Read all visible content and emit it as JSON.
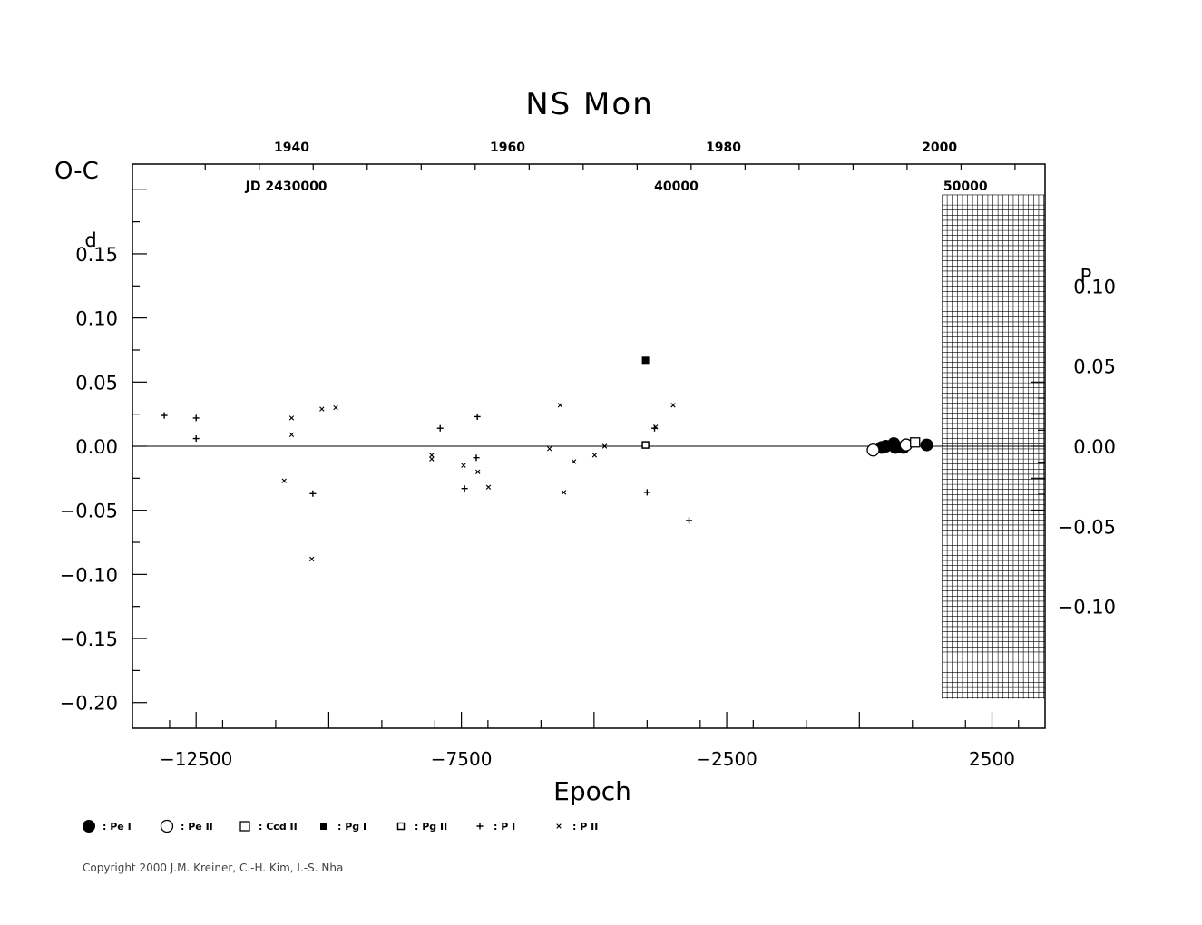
{
  "chart_data": {
    "type": "scatter",
    "title": "NS  Mon",
    "ylabel": "O-C",
    "xlabel": "Epoch",
    "xlim": [
      -13700,
      3500
    ],
    "ylim": [
      -0.22,
      0.22
    ],
    "y_ticks": [
      {
        "v": 0.15,
        "label": "0.15",
        "unit": "d"
      },
      {
        "v": 0.1,
        "label": "0.10"
      },
      {
        "v": 0.05,
        "label": "0.05"
      },
      {
        "v": 0.0,
        "label": "0.00"
      },
      {
        "v": -0.05,
        "label": "−0.05"
      },
      {
        "v": -0.1,
        "label": "−0.10"
      },
      {
        "v": -0.15,
        "label": "−0.15"
      },
      {
        "v": -0.2,
        "label": "−0.20"
      }
    ],
    "x_ticks": [
      {
        "v": -12500,
        "label": "−12500"
      },
      {
        "v": -7500,
        "label": "−7500"
      },
      {
        "v": -2500,
        "label": "−2500"
      },
      {
        "v": 2500,
        "label": "2500"
      }
    ],
    "top_year_ticks": [
      {
        "v": -10700,
        "label": "1940"
      },
      {
        "v": -6630,
        "label": "1960"
      },
      {
        "v": -2560,
        "label": "1980"
      },
      {
        "v": 1510,
        "label": "2000"
      }
    ],
    "jd_ticks": [
      {
        "v": -10800,
        "label": "JD 2430000"
      },
      {
        "v": -3450,
        "label": "40000"
      },
      {
        "v": 2000,
        "label": "50000"
      }
    ],
    "right_ticks": [
      {
        "v": 0.1,
        "label": "0.10",
        "unit": "P"
      },
      {
        "v": 0.05,
        "label": "0.05"
      },
      {
        "v": 0.0,
        "label": "0.00"
      },
      {
        "v": -0.05,
        "label": "−0.05"
      },
      {
        "v": -0.1,
        "label": "−0.10"
      }
    ],
    "period_scale": 0.5625,
    "future_grid": {
      "x_start": 1560,
      "x_end": 3500,
      "y_top": 0.196,
      "y_bottom": -0.197
    },
    "legend": [
      {
        "symbol": "filled-circle",
        "label": ": Pe I"
      },
      {
        "symbol": "open-circle",
        "label": ": Pe II"
      },
      {
        "symbol": "open-square",
        "label": ": Ccd II"
      },
      {
        "symbol": "filled-square",
        "label": ": Pg I"
      },
      {
        "symbol": "small-open-square",
        "label": ": Pg II"
      },
      {
        "symbol": "plus",
        "label": ": P I"
      },
      {
        "symbol": "cross",
        "label": ": P II"
      }
    ],
    "series": [
      {
        "name": "Pe I",
        "symbol": "filled-circle",
        "points": [
          [
            420,
            -0.001
          ],
          [
            500,
            0.0
          ],
          [
            650,
            0.002
          ],
          [
            680,
            -0.001
          ],
          [
            830,
            -0.001
          ],
          [
            1270,
            0.001
          ]
        ]
      },
      {
        "name": "Pe II",
        "symbol": "open-circle",
        "points": [
          [
            260,
            -0.003
          ],
          [
            880,
            0.001
          ]
        ]
      },
      {
        "name": "Ccd II",
        "symbol": "open-square",
        "points": [
          [
            1050,
            0.003
          ]
        ]
      },
      {
        "name": "Pg I",
        "symbol": "filled-square",
        "points": [
          [
            -4030,
            0.067
          ]
        ]
      },
      {
        "name": "Pg II",
        "symbol": "small-open-square",
        "points": [
          [
            -4030,
            0.001
          ]
        ]
      },
      {
        "name": "P I",
        "symbol": "plus",
        "points": [
          [
            -13100,
            0.024
          ],
          [
            -12500,
            0.022
          ],
          [
            -12500,
            0.006
          ],
          [
            -10300,
            -0.037
          ],
          [
            -7900,
            0.014
          ],
          [
            -7440,
            -0.033
          ],
          [
            -7200,
            0.023
          ],
          [
            -7220,
            -0.009
          ],
          [
            -4000,
            -0.036
          ],
          [
            -3860,
            0.014
          ],
          [
            -3210,
            -0.058
          ]
        ]
      },
      {
        "name": "P II",
        "symbol": "cross",
        "points": [
          [
            -10840,
            -0.027
          ],
          [
            -10700,
            0.022
          ],
          [
            -10700,
            0.009
          ],
          [
            -10320,
            -0.088
          ],
          [
            -10130,
            0.029
          ],
          [
            -9870,
            0.03
          ],
          [
            -8060,
            -0.007
          ],
          [
            -8060,
            -0.01
          ],
          [
            -7460,
            -0.015
          ],
          [
            -7190,
            -0.02
          ],
          [
            -6990,
            -0.032
          ],
          [
            -5840,
            -0.002
          ],
          [
            -5640,
            0.032
          ],
          [
            -5570,
            -0.036
          ],
          [
            -5380,
            -0.012
          ],
          [
            -4990,
            -0.007
          ],
          [
            -4800,
            0.0
          ],
          [
            -3840,
            0.015
          ],
          [
            -3510,
            0.032
          ]
        ]
      }
    ]
  },
  "copyright": "Copyright 2000 J.M. Kreiner, C.-H. Kim, I.-S. Nha"
}
